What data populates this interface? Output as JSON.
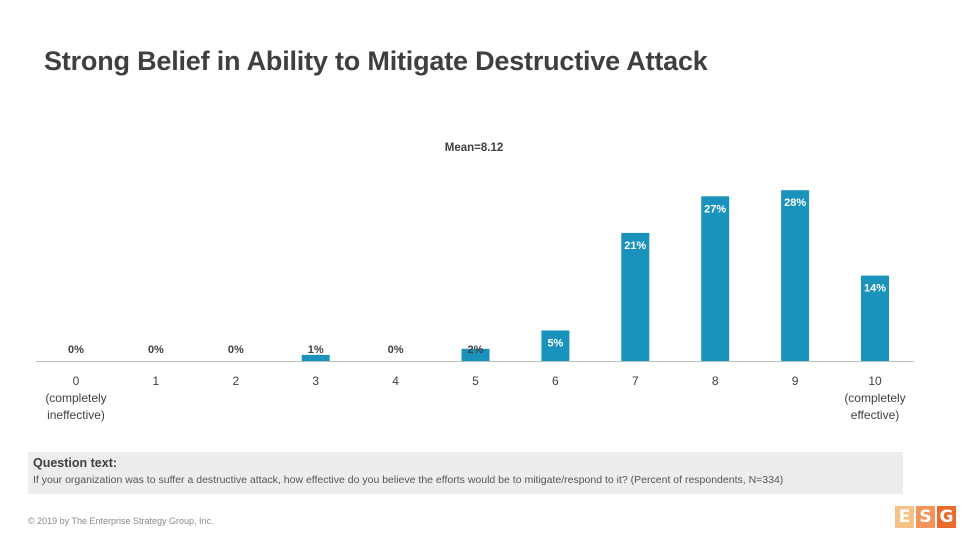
{
  "page": {
    "title": "Strong Belief in Ability to Mitigate Destructive Attack",
    "question_label": "Question text:",
    "question_text": "If your organization was to suffer a destructive attack, how effective do you believe the efforts would be to mitigate/respond to it? (Percent of respondents, N=334)",
    "footer": "© 2019 by The Enterprise Strategy Group, Inc.",
    "logo_letters": [
      "E",
      "S",
      "G"
    ]
  },
  "colors": {
    "bar": "#1a93bc",
    "axis": "#bfbfbf",
    "logo": [
      "#f7c287",
      "#f3955a",
      "#ec6a2b"
    ]
  },
  "chart_data": {
    "type": "bar",
    "title": "",
    "annotation": "Mean=8.12",
    "categories": [
      "0",
      "1",
      "2",
      "3",
      "4",
      "5",
      "6",
      "7",
      "8",
      "9",
      "10"
    ],
    "category_sublabels": [
      [
        "(completely",
        "ineffective)"
      ],
      [],
      [],
      [],
      [],
      [],
      [],
      [],
      [],
      [],
      [
        "(completely",
        "effective)"
      ]
    ],
    "values": [
      0,
      0,
      0,
      1,
      0,
      2,
      5,
      21,
      27,
      28,
      14
    ],
    "labels": [
      "0%",
      "0%",
      "0%",
      "1%",
      "0%",
      "2%",
      "5%",
      "21%",
      "27%",
      "28%",
      "14%"
    ],
    "ylim": [
      0,
      30
    ],
    "grid": false,
    "legend": "none"
  }
}
